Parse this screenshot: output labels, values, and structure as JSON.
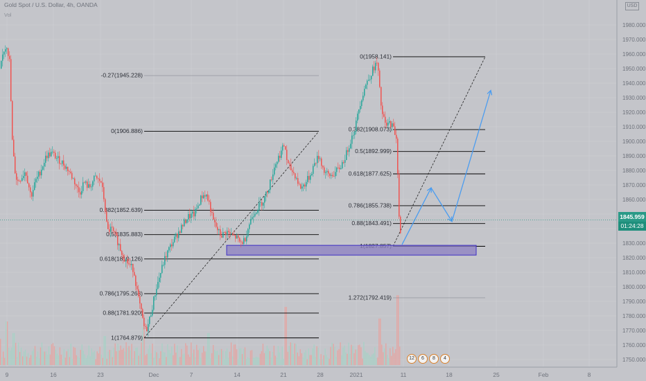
{
  "header": {
    "title": "Gold Spot / U.S. Dollar, 4h, OANDA",
    "volume_label": "Vol",
    "currency": "USD"
  },
  "price_badge": "1845.959",
  "timer_badge": "01:24:28",
  "event_badges": [
    "12",
    "6",
    "8",
    "4"
  ],
  "colors": {
    "up": "#26a69a",
    "down": "#ef5350",
    "zone_fill": "#8c7fc2",
    "zone_stroke": "#3d2ec4",
    "arrow": "#4a9cf0",
    "fib_line": "#000000",
    "background": "#c4c5ca"
  },
  "chart_data": {
    "type": "candlestick",
    "y_range": [
      1745,
      1980
    ],
    "y_ticks": [
      1750,
      1760,
      1770,
      1780,
      1790,
      1800,
      1810,
      1820,
      1830,
      1840,
      1850,
      1860,
      1870,
      1880,
      1890,
      1900,
      1910,
      1920,
      1930,
      1940,
      1950,
      1960,
      1970,
      1980
    ],
    "x_tick_labels": [
      "9",
      "16",
      "23",
      "Dec",
      "7",
      "14",
      "21",
      "28",
      "2021",
      "11",
      "18",
      "25",
      "Feb",
      "8"
    ],
    "price_path": [
      [
        0,
        1950
      ],
      [
        4,
        1962
      ],
      [
        9,
        1966
      ],
      [
        13,
        1955
      ],
      [
        17,
        1900
      ],
      [
        20,
        1882
      ],
      [
        24,
        1872
      ],
      [
        30,
        1875
      ],
      [
        36,
        1880
      ],
      [
        44,
        1862
      ],
      [
        50,
        1872
      ],
      [
        58,
        1880
      ],
      [
        66,
        1890
      ],
      [
        74,
        1892
      ],
      [
        82,
        1888
      ],
      [
        90,
        1885
      ],
      [
        98,
        1880
      ],
      [
        106,
        1873
      ],
      [
        114,
        1864
      ],
      [
        120,
        1872
      ],
      [
        128,
        1868
      ],
      [
        136,
        1875
      ],
      [
        145,
        1872
      ],
      [
        150,
        1858
      ],
      [
        154,
        1838
      ],
      [
        160,
        1840
      ],
      [
        170,
        1830
      ],
      [
        176,
        1822
      ],
      [
        184,
        1816
      ],
      [
        192,
        1812
      ],
      [
        198,
        1794
      ],
      [
        204,
        1780
      ],
      [
        208,
        1770
      ],
      [
        212,
        1772
      ],
      [
        218,
        1784
      ],
      [
        224,
        1798
      ],
      [
        230,
        1808
      ],
      [
        236,
        1818
      ],
      [
        242,
        1825
      ],
      [
        250,
        1832
      ],
      [
        260,
        1840
      ],
      [
        270,
        1848
      ],
      [
        280,
        1850
      ],
      [
        290,
        1862
      ],
      [
        296,
        1864
      ],
      [
        302,
        1856
      ],
      [
        306,
        1846
      ],
      [
        312,
        1840
      ],
      [
        318,
        1835
      ],
      [
        326,
        1838
      ],
      [
        334,
        1835
      ],
      [
        340,
        1834
      ],
      [
        346,
        1830
      ],
      [
        352,
        1832
      ],
      [
        358,
        1842
      ],
      [
        364,
        1850
      ],
      [
        372,
        1855
      ],
      [
        380,
        1860
      ],
      [
        388,
        1870
      ],
      [
        396,
        1884
      ],
      [
        404,
        1892
      ],
      [
        410,
        1898
      ],
      [
        414,
        1884
      ],
      [
        420,
        1880
      ],
      [
        426,
        1876
      ],
      [
        432,
        1868
      ],
      [
        438,
        1870
      ],
      [
        446,
        1876
      ],
      [
        454,
        1886
      ],
      [
        460,
        1890
      ],
      [
        466,
        1880
      ],
      [
        474,
        1876
      ],
      [
        482,
        1878
      ],
      [
        490,
        1882
      ],
      [
        498,
        1890
      ],
      [
        506,
        1902
      ],
      [
        512,
        1910
      ],
      [
        518,
        1925
      ],
      [
        526,
        1938
      ],
      [
        534,
        1946
      ],
      [
        540,
        1952
      ],
      [
        544,
        1954
      ],
      [
        546,
        1940
      ],
      [
        550,
        1920
      ],
      [
        556,
        1910
      ],
      [
        562,
        1913
      ],
      [
        568,
        1908
      ],
      [
        572,
        1900
      ],
      [
        574,
        1860
      ],
      [
        576,
        1838
      ],
      [
        578,
        1833
      ]
    ],
    "volume": {
      "n_bars": 290,
      "avg": 10,
      "spikes": [
        {
          "x": 0,
          "value": 18
        },
        {
          "x": 8,
          "value": 30
        },
        {
          "x": 18,
          "value": 22
        },
        {
          "x": 150,
          "value": 20
        },
        {
          "x": 206,
          "value": 26
        },
        {
          "x": 300,
          "value": 22
        },
        {
          "x": 412,
          "value": 40
        },
        {
          "x": 548,
          "value": 32
        },
        {
          "x": 574,
          "value": 48
        }
      ]
    },
    "fib_set_1": [
      {
        "label": "0(1906.886)",
        "price": 1906.886
      },
      {
        "label": "-0.27(1945.228)",
        "price": 1945.228
      },
      {
        "label": "0.382(1852.639)",
        "price": 1852.639
      },
      {
        "label": "0.5(1835.883)",
        "price": 1835.883
      },
      {
        "label": "0.618(1819.126)",
        "price": 1819.126
      },
      {
        "label": "0.786(1795.268)",
        "price": 1795.268
      },
      {
        "label": "0.88(1781.920)",
        "price": 1781.92
      },
      {
        "label": "1(1764.879)",
        "price": 1764.879
      }
    ],
    "fib_set_2": [
      {
        "label": "0(1958.141)",
        "price": 1958.141
      },
      {
        "label": "0.382(1908.073)",
        "price": 1908.073
      },
      {
        "label": "0.5(1892.999)",
        "price": 1892.999
      },
      {
        "label": "0.618(1877.625)",
        "price": 1877.625
      },
      {
        "label": "0.786(1855.738)",
        "price": 1855.738
      },
      {
        "label": "0.88(1843.491)",
        "price": 1843.491
      },
      {
        "label": "1(1827.857)",
        "price": 1827.857
      },
      {
        "label": "1.272(1792.419)",
        "price": 1792.419
      }
    ],
    "demand_zone": {
      "price_top": 1828.5,
      "price_bottom": 1821.8
    },
    "trendlines": [
      {
        "from_price": 1764.879,
        "to_price": 1906.886
      },
      {
        "from_price": 1827.857,
        "to_price": 1958.141
      }
    ],
    "projection_path": [
      1829,
      1868,
      1845,
      1935
    ],
    "last_price_line": 1845.959
  }
}
